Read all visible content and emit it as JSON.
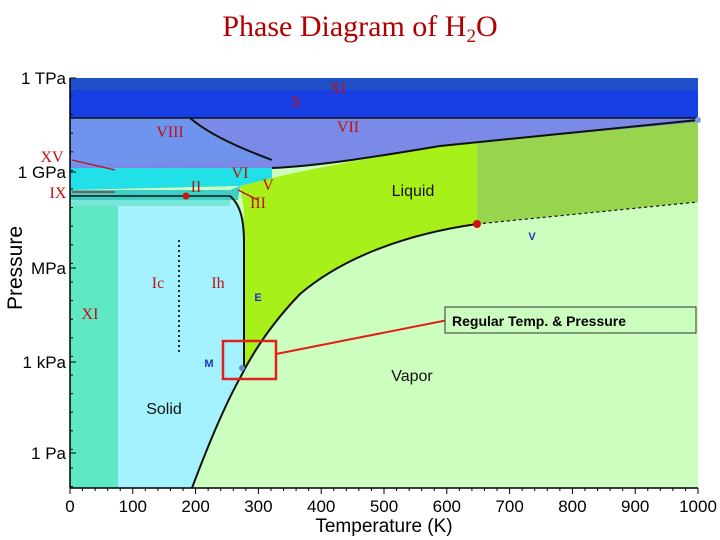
{
  "title_main": "Phase Diagram of H",
  "title_sub": "2",
  "title_end": "O",
  "chart_data": {
    "type": "area",
    "xlabel": "Temperature (K)",
    "ylabel": "Pressure",
    "xlim": [
      0,
      1000
    ],
    "x_ticks": [
      "0",
      "100",
      "200",
      "300",
      "400",
      "500",
      "600",
      "700",
      "800",
      "900",
      "1000"
    ],
    "y_ticks": [
      "1 TPa",
      "1 GPa",
      "MPa",
      "1 kPa",
      "1 Pa"
    ],
    "regions": {
      "roman": [
        "X",
        "XI",
        "VIII",
        "VII",
        "XV",
        "VI",
        "IX",
        "II",
        "V",
        "III",
        "Ic",
        "Ih",
        "XI"
      ],
      "plain": [
        "Liquid",
        "Solid",
        "Vapor"
      ],
      "markers": [
        "E",
        "V",
        "M"
      ]
    },
    "annotation": "Regular Temp. & Pressure",
    "colors": {
      "solid_ice": "#a4f2ff",
      "liquid": "#a8f01a",
      "vapor": "#ccffbf",
      "supercritical": "#98d44e",
      "ice_x": "#1640e6",
      "ice_vii": "#7a8ae6",
      "ice_xi": "#5fe8c4",
      "callout": "#e0201a"
    }
  }
}
